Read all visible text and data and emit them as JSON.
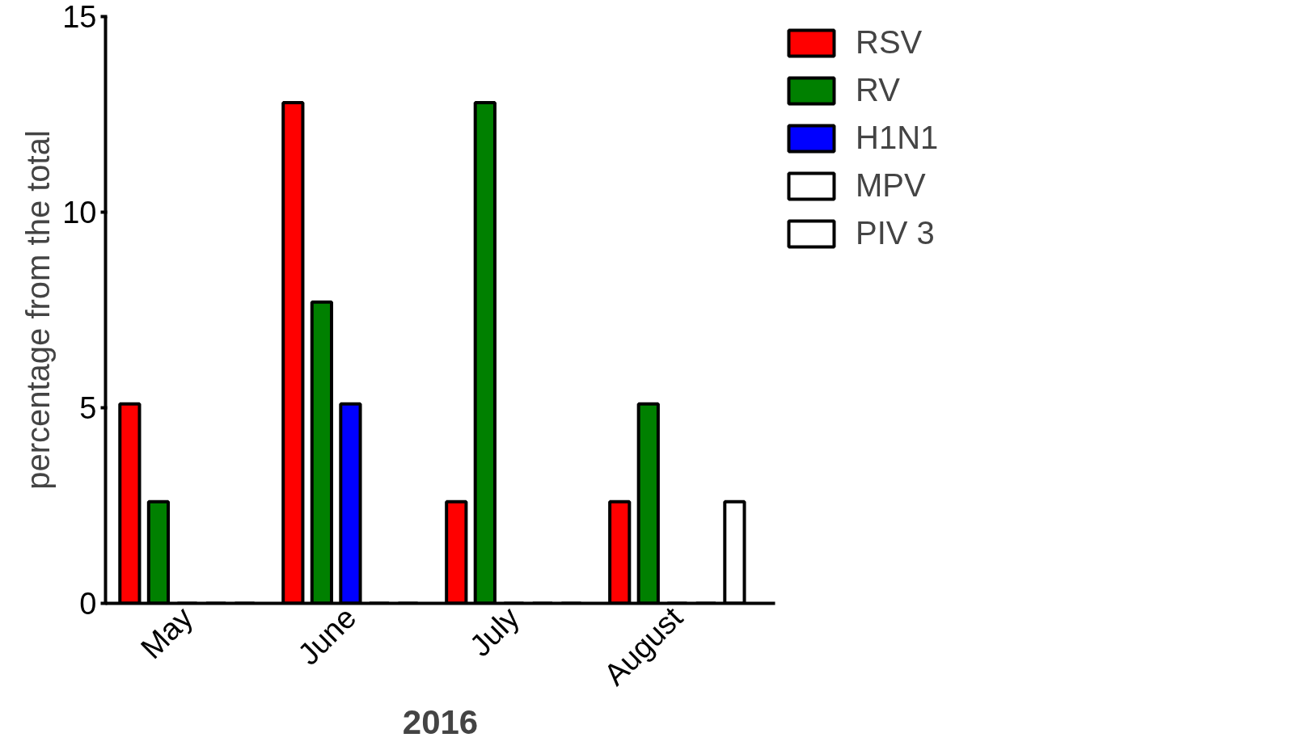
{
  "chart_data": {
    "type": "bar",
    "xlabel": "2016",
    "ylabel": "percentage from the total",
    "categories": [
      "May",
      "June",
      "July",
      "August"
    ],
    "series": [
      {
        "name": "RSV",
        "color": "#ff0000",
        "values": [
          5.1,
          12.8,
          2.6,
          2.6
        ]
      },
      {
        "name": "RV",
        "color": "#008000",
        "values": [
          2.6,
          7.7,
          12.8,
          5.1
        ]
      },
      {
        "name": "H1N1",
        "color": "#0000ff",
        "values": [
          0,
          5.1,
          0,
          0
        ]
      },
      {
        "name": "MPV",
        "color": "#ffffff",
        "values": [
          0,
          0,
          0,
          0
        ]
      },
      {
        "name": "PIV 3",
        "color": "#ffffff",
        "values": [
          0,
          0,
          0,
          2.6
        ]
      }
    ],
    "ylim": [
      0,
      15
    ],
    "yticks": [
      0,
      5,
      10,
      15
    ],
    "grid": false,
    "legend": "top right"
  }
}
